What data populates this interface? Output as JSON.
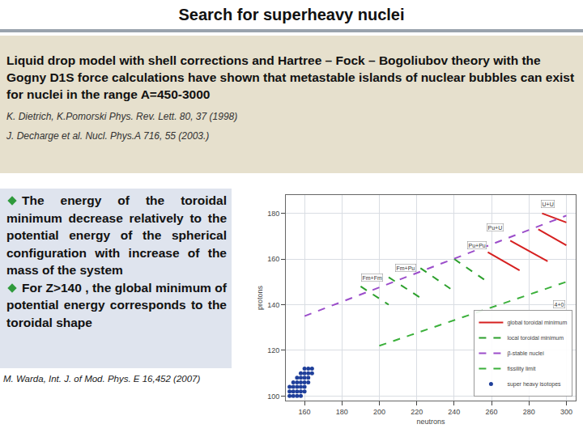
{
  "header": {
    "title": "Search for superheavy nuclei"
  },
  "intro": {
    "text": "Liquid drop model with shell corrections and Hartree – Fock – Bogoliubov theory with the Gogny D1S force calculations have shown that metastable islands of nuclear bubbles can exist for nuclei in the range A=450-3000",
    "references": [
      "K. Dietrich,  K.Pomorski Phys. Rev. Lett. 80, 37 (1998)",
      "J. Decharge et al. Nucl. Phys.A 716, 55 (2003.)"
    ]
  },
  "bullets": [
    "The energy of the toroidal minimum decrease relatively to the potential energy of the spherical configuration with increase of the mass of the system",
    "For Z>140 , the global minimum of potential energy corresponds to the toroidal shape"
  ],
  "bullets_reference": "M. Warda, Int. J. of Mod. Phys. E 16,452 (2007)",
  "chart_data": {
    "type": "line",
    "xlabel": "neutrons",
    "ylabel": "protons",
    "xlim": [
      150,
      305
    ],
    "ylim": [
      98,
      188
    ],
    "xticks": [
      160,
      180,
      200,
      220,
      240,
      260,
      280,
      300
    ],
    "yticks": [
      100,
      120,
      140,
      160,
      180
    ],
    "grid": true,
    "legend": "lower right",
    "series": [
      {
        "name": "global toroidal minimum",
        "color": "#d62020",
        "line_style": "solid",
        "x": [
          258,
          275,
          null,
          270,
          290,
          null,
          285,
          300,
          null,
          287,
          300
        ],
        "values": [
          163,
          155,
          null,
          168,
          159,
          null,
          173,
          166,
          null,
          180,
          176
        ]
      },
      {
        "name": "local toroidal minimum",
        "color": "#2ca02c",
        "line_style": "dash",
        "x": [
          190,
          205,
          null,
          205,
          222,
          null,
          222,
          238,
          null,
          240,
          256
        ],
        "values": [
          148,
          140,
          null,
          152,
          143,
          null,
          156,
          147,
          null,
          160,
          151
        ]
      },
      {
        "name": "β-stable nuclei",
        "color": "#9b4dca",
        "line_style": "dash",
        "x": [
          160,
          300
        ],
        "values": [
          135,
          179
        ]
      },
      {
        "name": "fissility limit",
        "color": "#3bb03b",
        "line_style": "dash",
        "x": [
          200,
          300
        ],
        "values": [
          122,
          150
        ]
      },
      {
        "name": "super heavy isotopes",
        "color": "#1f3f9a",
        "type": "scatter",
        "marker": "circle",
        "x": [
          152,
          154,
          156,
          158,
          152,
          154,
          156,
          158,
          160,
          152,
          154,
          156,
          158,
          160,
          154,
          156,
          158,
          160,
          162,
          156,
          158,
          160,
          162,
          158,
          160,
          162,
          164,
          160,
          162,
          164
        ],
        "values": [
          100,
          100,
          100,
          100,
          102,
          102,
          102,
          102,
          102,
          104,
          104,
          104,
          104,
          104,
          106,
          106,
          106,
          106,
          106,
          108,
          108,
          108,
          108,
          110,
          110,
          110,
          110,
          112,
          112,
          112
        ]
      }
    ],
    "annotations": [
      {
        "text": "U+U",
        "x": 290,
        "y": 184
      },
      {
        "text": "Pu+U",
        "x": 262,
        "y": 174
      },
      {
        "text": "Pu+Pu",
        "x": 252,
        "y": 166
      },
      {
        "text": "Fm+Pu",
        "x": 214,
        "y": 156
      },
      {
        "text": "Fm+Fm",
        "x": 196,
        "y": 152
      },
      {
        "text": "4+0",
        "x": 296,
        "y": 140
      }
    ]
  }
}
